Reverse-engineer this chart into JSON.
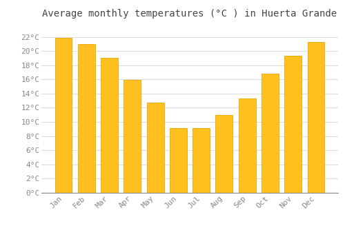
{
  "title": "Average monthly temperatures (°C ) in Huerta Grande",
  "months": [
    "Jan",
    "Feb",
    "Mar",
    "Apr",
    "May",
    "Jun",
    "Jul",
    "Aug",
    "Sep",
    "Oct",
    "Nov",
    "Dec"
  ],
  "values": [
    21.9,
    21.0,
    19.0,
    15.9,
    12.7,
    9.1,
    9.1,
    11.0,
    13.3,
    16.8,
    19.3,
    21.3
  ],
  "bar_color": "#FFC020",
  "bar_edge_color": "#E8A800",
  "background_color": "#FFFFFF",
  "grid_color": "#DDDDDD",
  "ytick_labels": [
    "0°C",
    "2°C",
    "4°C",
    "6°C",
    "8°C",
    "10°C",
    "12°C",
    "14°C",
    "16°C",
    "18°C",
    "20°C",
    "22°C"
  ],
  "ytick_values": [
    0,
    2,
    4,
    6,
    8,
    10,
    12,
    14,
    16,
    18,
    20,
    22
  ],
  "ylim": [
    0,
    23.8
  ],
  "title_fontsize": 10,
  "tick_fontsize": 8,
  "tick_font_color": "#888888",
  "title_font_color": "#444444"
}
